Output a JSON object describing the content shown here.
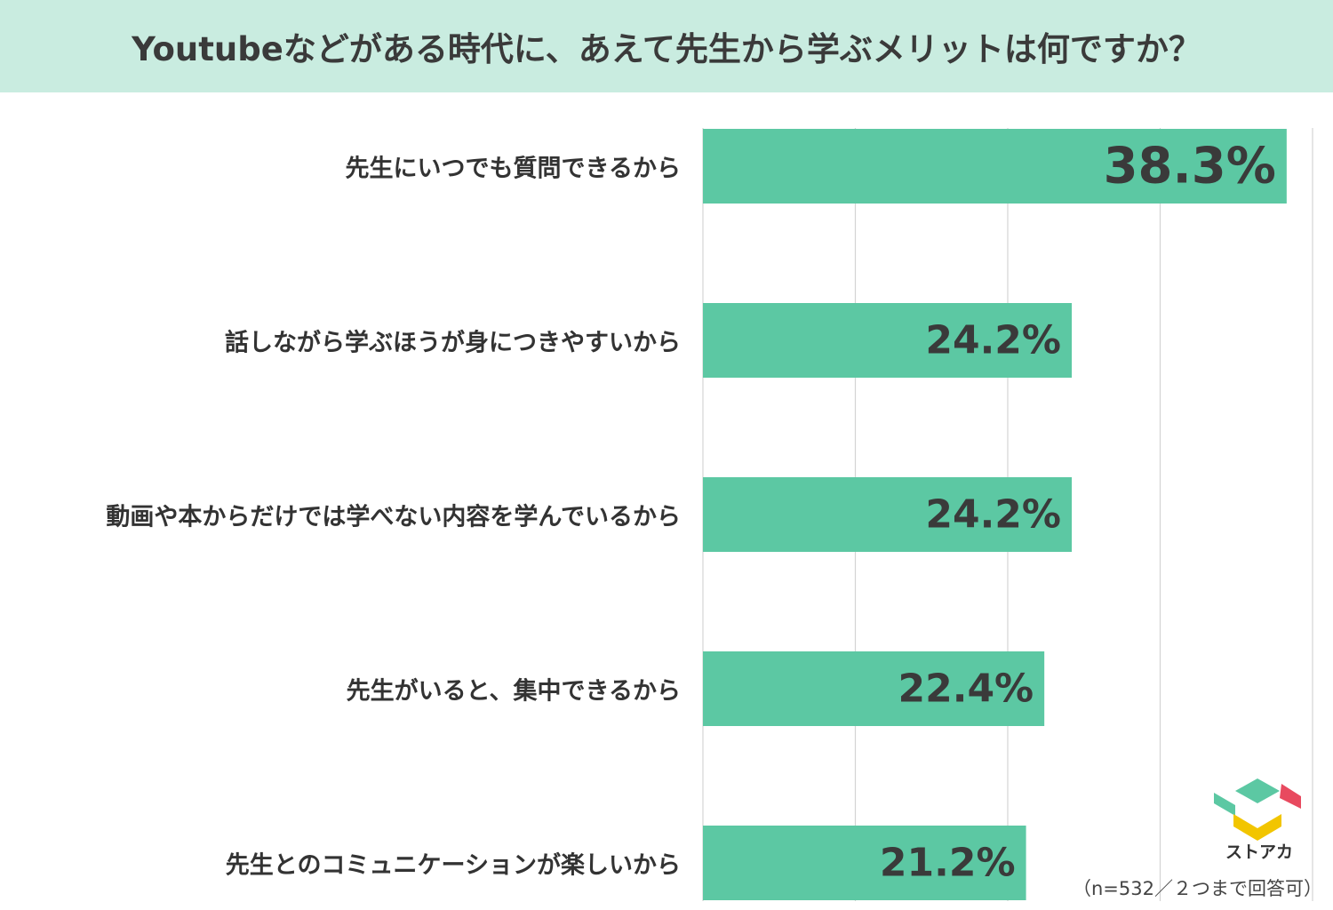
{
  "header": {
    "title": "Youtubeなどがある時代に、あえて先生から学ぶメリットは何ですか？"
  },
  "chart_data": {
    "type": "bar",
    "orientation": "horizontal",
    "title": "Youtubeなどがある時代に、あえて先生から学ぶメリットは何ですか？",
    "categories": [
      "先生にいつでも質問できるから",
      "話しながら学ぶほうが身につきやすいから",
      "動画や本からだけでは学べない内容を学んでいるから",
      "先生がいると、集中できるから",
      "先生とのコミュニケーションが楽しいから"
    ],
    "values": [
      38.3,
      24.2,
      24.2,
      22.4,
      21.2
    ],
    "value_labels": [
      "38.3%",
      "24.2%",
      "24.2%",
      "22.4%",
      "21.2%"
    ],
    "xlim": [
      0,
      40
    ],
    "grid": true,
    "bar_color": "#5cc8a3",
    "gridline_color": "#d4d4d4"
  },
  "footnote": "（n=532／２つまで回答可）",
  "logo": {
    "text": "ストアカ",
    "colors": [
      "#5cc8a3",
      "#e84a5f",
      "#f2c500"
    ]
  }
}
